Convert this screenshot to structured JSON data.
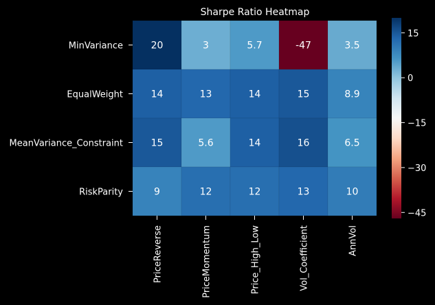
{
  "chart_data": {
    "type": "heatmap",
    "title": "Sharpe Ratio Heatmap",
    "xlabel": "",
    "ylabel": "",
    "rows": [
      "MinVariance",
      "EqualWeight",
      "MeanVariance_Constraint",
      "RiskParity"
    ],
    "columns": [
      "PriceReverse",
      "PriceMomentum",
      "Price_High_Low",
      "Vol_Coefficient",
      "AnnVol"
    ],
    "values": [
      [
        20,
        3,
        5.7,
        -47,
        3.5
      ],
      [
        14,
        13,
        14,
        15,
        8.9
      ],
      [
        15,
        5.6,
        14,
        16,
        6.5
      ],
      [
        9,
        12,
        12,
        13,
        10
      ]
    ],
    "color_range": [
      -47,
      20
    ],
    "colorbar_ticks": [
      15,
      0,
      -15,
      -30,
      -45
    ],
    "colormap": "RdBu",
    "background": "#000000"
  }
}
